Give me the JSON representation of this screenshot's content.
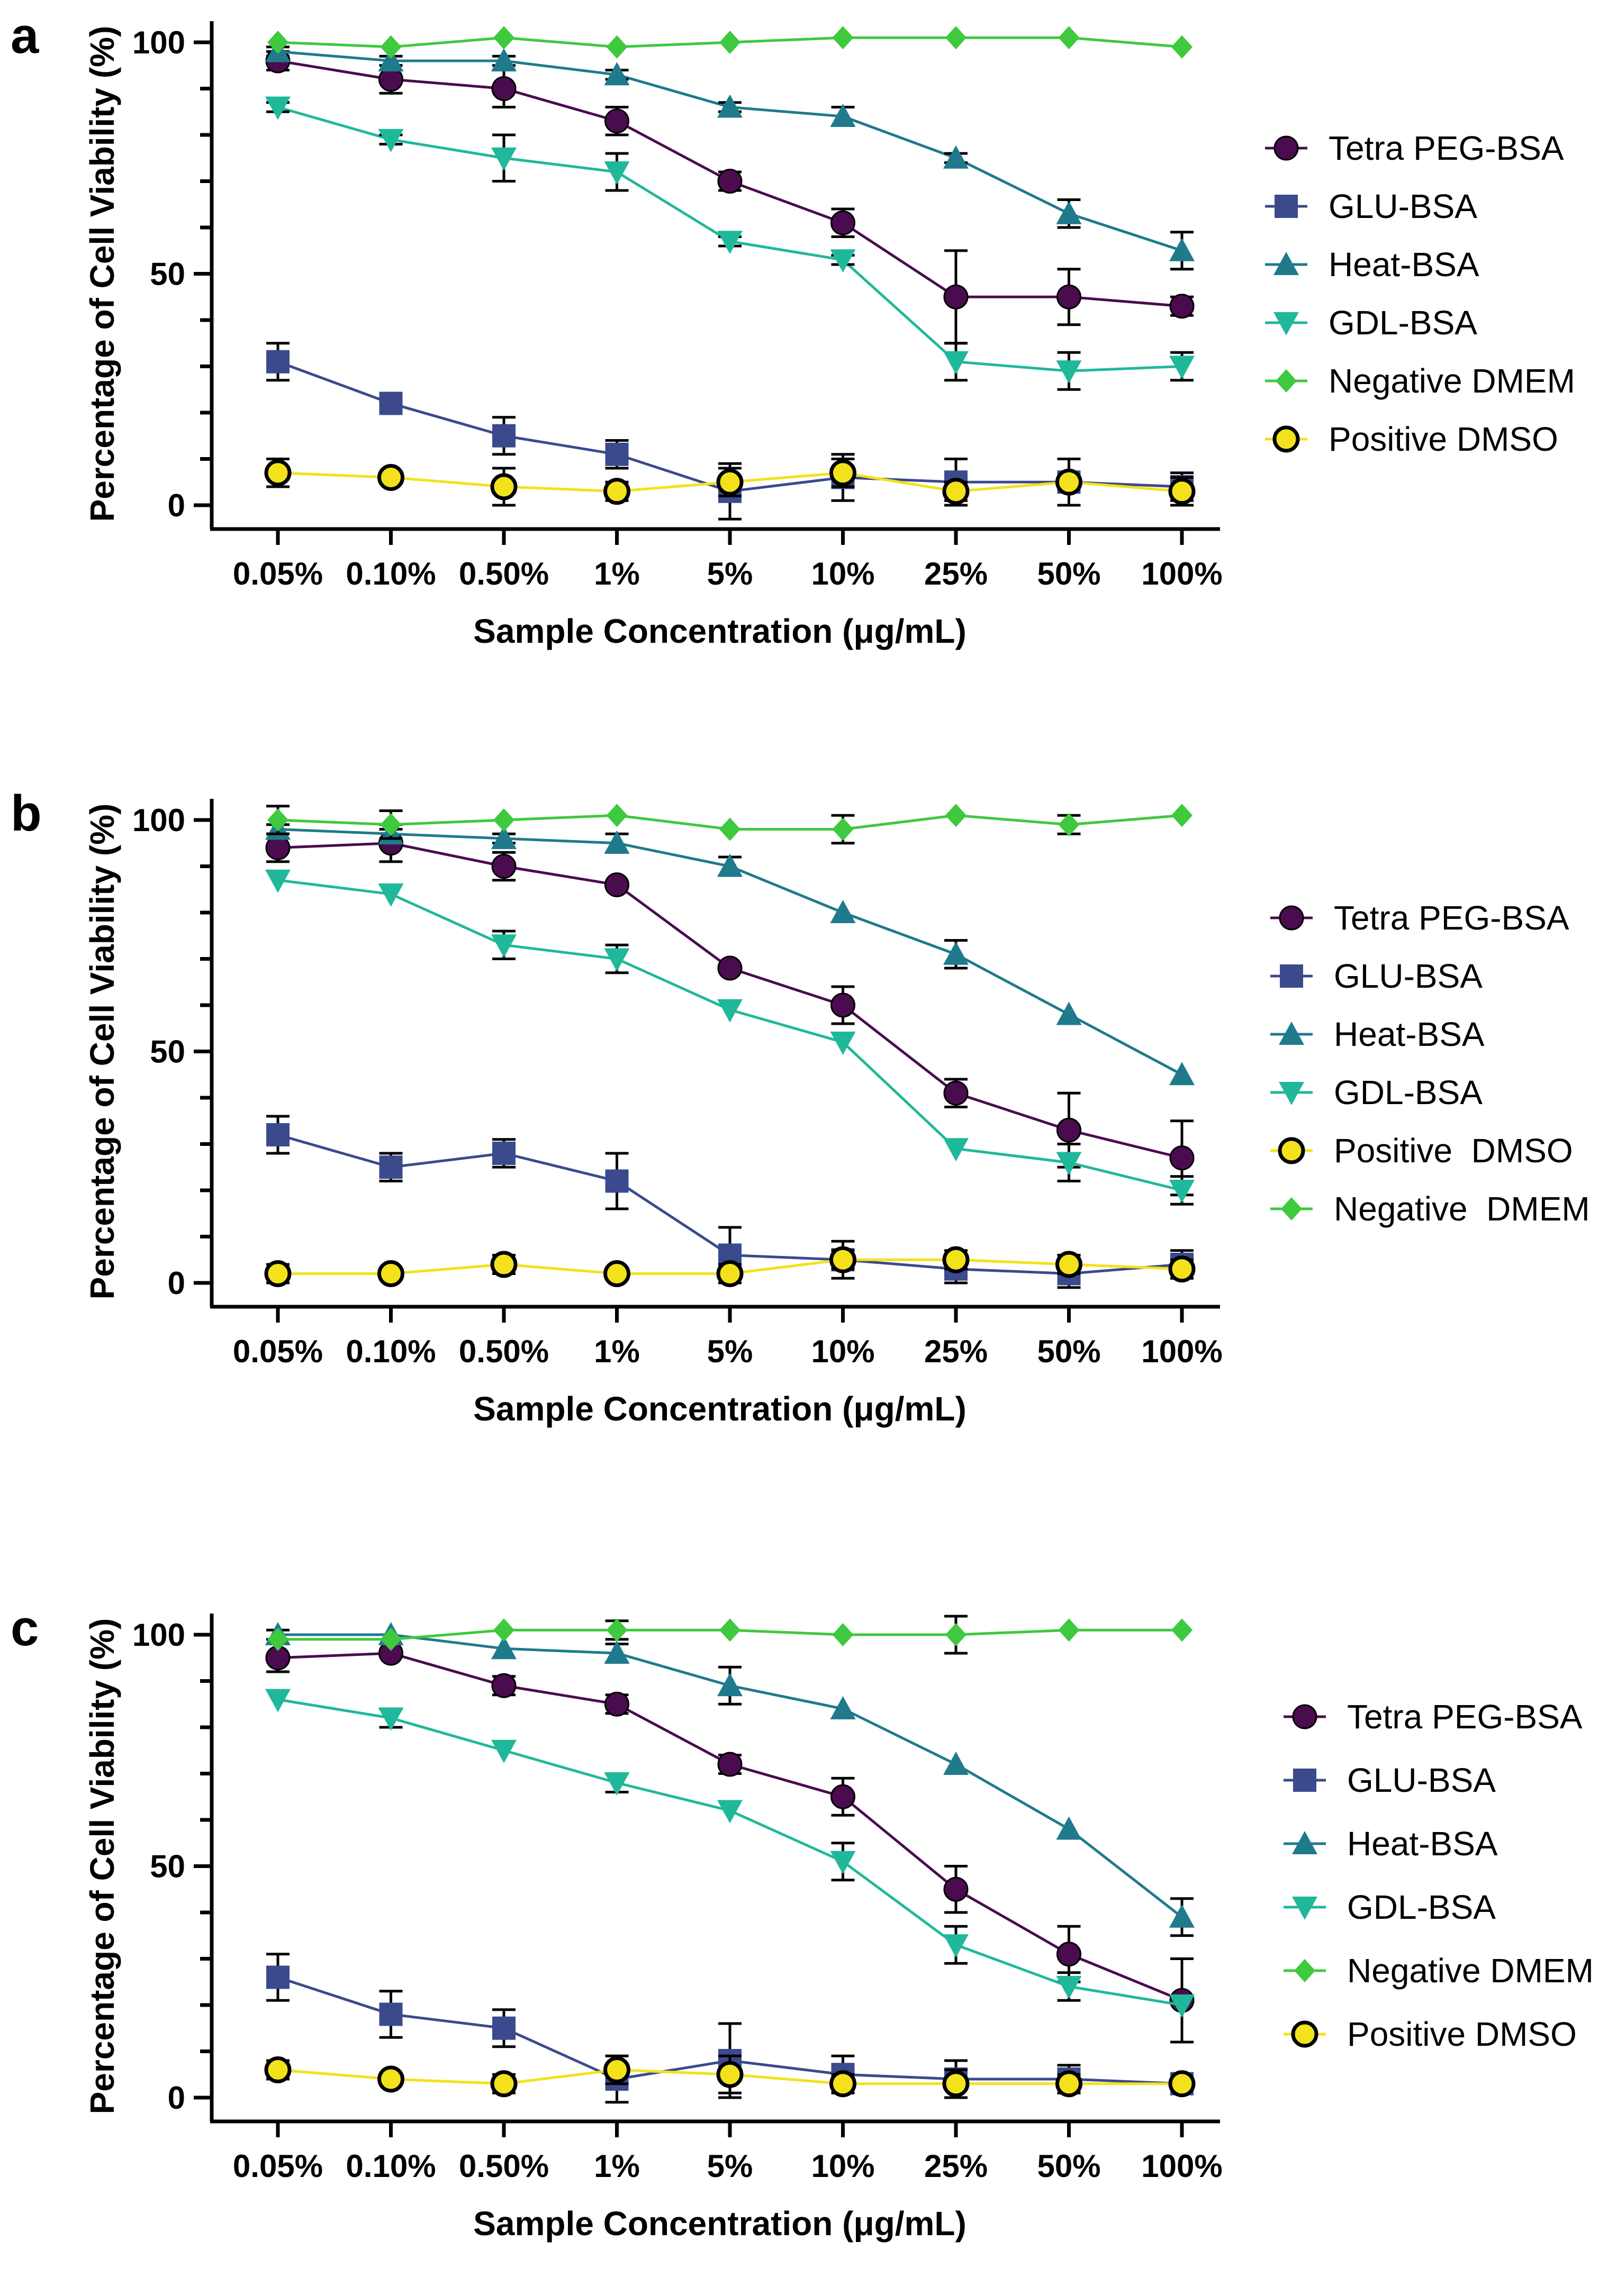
{
  "panels": [
    {
      "chart_data": {
        "type": "line",
        "panel_label": "a",
        "xlabel": "Sample Concentration (μg/mL)",
        "ylabel": "Percentage of Cell Viability (%)",
        "ylim": [
          0,
          100
        ],
        "yticks": [
          0,
          50,
          100
        ],
        "categories": [
          "0.05%",
          "0.10%",
          "0.50%",
          "1%",
          "5%",
          "10%",
          "25%",
          "50%",
          "100%"
        ],
        "legend_order": [
          "Tetra PEG-BSA",
          "GLU-BSA",
          "Heat-BSA",
          "GDL-BSA",
          "Negative DMEM",
          "Positive DMSO"
        ],
        "series": [
          {
            "name": "Tetra PEG-BSA",
            "values": [
              96,
              92,
              90,
              83,
              70,
              61,
              45,
              45,
              43
            ],
            "errors": [
              2,
              3,
              4,
              3,
              2,
              3,
              10,
              6,
              2
            ]
          },
          {
            "name": "GLU-BSA",
            "values": [
              31,
              22,
              15,
              11,
              3,
              6,
              5,
              5,
              4
            ],
            "errors": [
              4,
              1,
              4,
              3,
              6,
              5,
              5,
              5,
              3
            ]
          },
          {
            "name": "Heat-BSA",
            "values": [
              98,
              96,
              96,
              93,
              86,
              84,
              75,
              63,
              55
            ],
            "errors": [
              1,
              1,
              1,
              1,
              1,
              2,
              1,
              3,
              4
            ]
          },
          {
            "name": "GDL-BSA",
            "values": [
              86,
              79,
              75,
              72,
              57,
              53,
              31,
              29,
              30
            ],
            "errors": [
              1,
              1,
              5,
              4,
              1,
              1,
              4,
              4,
              3
            ]
          },
          {
            "name": "Negative DMEM",
            "values": [
              100,
              99,
              101,
              99,
              100,
              101,
              101,
              101,
              99
            ],
            "errors": [
              0,
              0,
              0,
              0,
              0,
              0,
              0,
              0,
              0
            ]
          },
          {
            "name": "Positive DMSO",
            "values": [
              7,
              6,
              4,
              3,
              5,
              7,
              3,
              5,
              3
            ],
            "errors": [
              3,
              0,
              4,
              2,
              3,
              3,
              2,
              5,
              3
            ]
          }
        ]
      }
    },
    {
      "chart_data": {
        "type": "line",
        "panel_label": "b",
        "xlabel": "Sample Concentration (μg/mL)",
        "ylabel": "Percentage of Cell Viability (%)",
        "ylim": [
          0,
          100
        ],
        "yticks": [
          0,
          50,
          100
        ],
        "categories": [
          "0.05%",
          "0.10%",
          "0.50%",
          "1%",
          "5%",
          "10%",
          "25%",
          "50%",
          "100%"
        ],
        "legend_order": [
          "Tetra PEG-BSA",
          "GLU-BSA",
          "Heat-BSA",
          "GDL-BSA",
          "Positive  DMSO",
          "Negative  DMEM"
        ],
        "series": [
          {
            "name": "Tetra PEG-BSA",
            "values": [
              94,
              95,
              90,
              86,
              68,
              60,
              41,
              33,
              27
            ],
            "errors": [
              3,
              4,
              3,
              0,
              0,
              4,
              3,
              8,
              8
            ]
          },
          {
            "name": "GLU-BSA",
            "values": [
              32,
              25,
              28,
              22,
              6,
              5,
              3,
              2,
              4
            ],
            "errors": [
              4,
              3,
              3,
              6,
              6,
              4,
              3,
              3,
              3
            ]
          },
          {
            "name": "Heat-BSA",
            "values": [
              98,
              97,
              96,
              95,
              90,
              80,
              71,
              58,
              45
            ],
            "errors": [
              1,
              1,
              1,
              2,
              2,
              0,
              3,
              0,
              0
            ]
          },
          {
            "name": "GDL-BSA",
            "values": [
              87,
              84,
              73,
              70,
              59,
              52,
              29,
              26,
              20
            ],
            "errors": [
              0,
              0,
              3,
              3,
              0,
              0,
              0,
              4,
              3
            ]
          },
          {
            "name": "Positive  DMSO",
            "values": [
              2,
              2,
              4,
              2,
              2,
              5,
              5,
              4,
              3
            ],
            "errors": [
              2,
              0,
              2,
              0,
              2,
              2,
              2,
              2,
              2
            ]
          },
          {
            "name": "Negative  DMEM",
            "values": [
              100,
              99,
              100,
              101,
              98,
              98,
              101,
              99,
              101
            ],
            "errors": [
              3,
              3,
              0,
              0,
              0,
              3,
              0,
              2,
              0
            ]
          }
        ]
      }
    },
    {
      "chart_data": {
        "type": "line",
        "panel_label": "c",
        "xlabel": "Sample Concentration (μg/mL)",
        "ylabel": "Percentage of Cell Viability (%)",
        "ylim": [
          0,
          100
        ],
        "yticks": [
          0,
          50,
          100
        ],
        "categories": [
          "0.05%",
          "0.10%",
          "0.50%",
          "1%",
          "5%",
          "10%",
          "25%",
          "50%",
          "100%"
        ],
        "legend_order": [
          "Tetra PEG-BSA",
          "GLU-BSA",
          "Heat-BSA",
          "GDL-BSA",
          "Negative DMEM",
          "Positive DMSO"
        ],
        "series": [
          {
            "name": "Tetra PEG-BSA",
            "values": [
              95,
              96,
              89,
              85,
              72,
              65,
              45,
              31,
              21
            ],
            "errors": [
              3,
              0,
              2,
              2,
              2,
              4,
              5,
              6,
              9
            ]
          },
          {
            "name": "GLU-BSA",
            "values": [
              26,
              18,
              15,
              4,
              8,
              5,
              4,
              4,
              3
            ],
            "errors": [
              5,
              5,
              4,
              5,
              8,
              4,
              4,
              3,
              2
            ]
          },
          {
            "name": "Heat-BSA",
            "values": [
              100,
              100,
              97,
              96,
              89,
              84,
              72,
              58,
              39
            ],
            "errors": [
              1,
              0,
              0,
              2,
              4,
              0,
              0,
              0,
              4
            ]
          },
          {
            "name": "GDL-BSA",
            "values": [
              86,
              82,
              75,
              68,
              62,
              51,
              33,
              24,
              20
            ],
            "errors": [
              0,
              2,
              0,
              2,
              0,
              4,
              4,
              3,
              0
            ]
          },
          {
            "name": "Negative DMEM",
            "values": [
              99,
              99,
              101,
              101,
              101,
              100,
              100,
              101,
              101
            ],
            "errors": [
              0,
              0,
              0,
              2,
              0,
              0,
              4,
              0,
              0
            ]
          },
          {
            "name": "Positive DMSO",
            "values": [
              6,
              4,
              3,
              6,
              5,
              3,
              3,
              3,
              3
            ],
            "errors": [
              2,
              0,
              2,
              3,
              4,
              2,
              3,
              2,
              1
            ]
          }
        ]
      }
    }
  ],
  "series_styles": {
    "Tetra PEG-BSA": {
      "color": "#4a0c4f",
      "marker": "circle"
    },
    "GLU-BSA": {
      "color": "#3b4a8c",
      "marker": "square"
    },
    "Heat-BSA": {
      "color": "#1f7a8c",
      "marker": "triangle-up"
    },
    "GDL-BSA": {
      "color": "#20b89a",
      "marker": "triangle-down"
    },
    "Negative DMEM": {
      "color": "#3ec93e",
      "marker": "diamond"
    },
    "Positive DMSO": {
      "color": "#f3e21b",
      "marker": "circle-outlined"
    }
  }
}
